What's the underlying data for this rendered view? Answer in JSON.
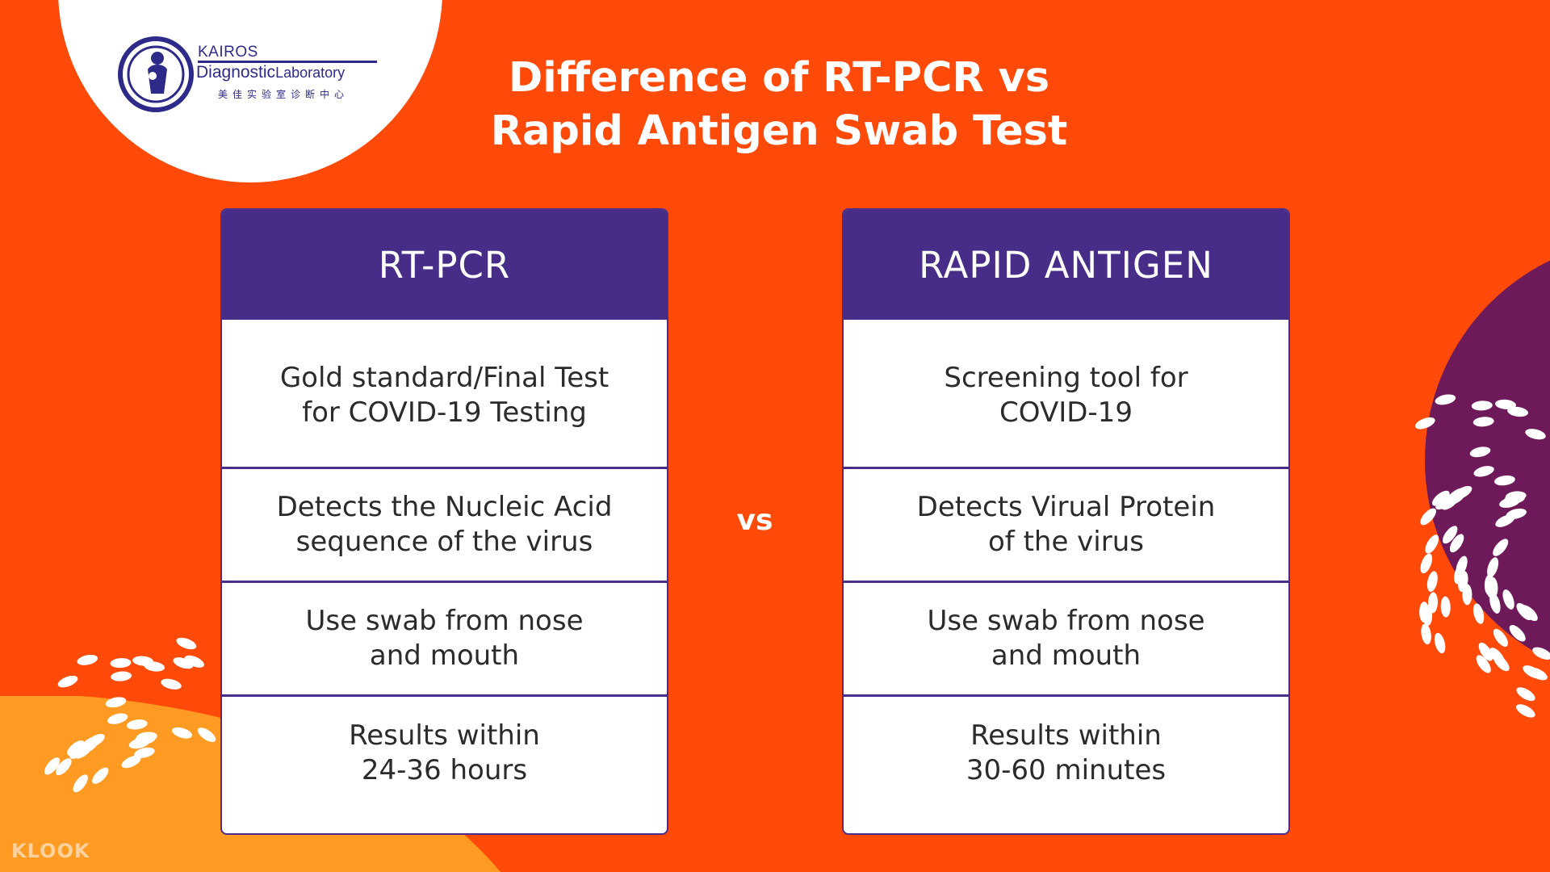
{
  "colors": {
    "background": "#ff4a0a",
    "header": "#472d88",
    "border": "#4a2d8c",
    "accent_yellow": "#ff9a22",
    "accent_purple": "#6e1a5a",
    "logo_blue": "#2d2a8a"
  },
  "logo": {
    "brand": "KAIROS",
    "name_main": "Diagnostic",
    "name_sub": "Laboratory",
    "chinese": "美佳实验室诊断中心",
    "emblem_icon": "mother-child-emblem-icon"
  },
  "title": {
    "line1": "Difference of RT-PCR vs",
    "line2": "Rapid Antigen Swab Test"
  },
  "vs_label": "vs",
  "left": {
    "header": "RT-PCR",
    "rows": [
      {
        "line1": "Gold standard/Final Test",
        "line2": "for COVID-19 Testing"
      },
      {
        "line1": "Detects the Nucleic Acid",
        "line2": "sequence of the virus"
      },
      {
        "line1": "Use swab from nose",
        "line2": "and mouth"
      },
      {
        "line1": "Results within",
        "line2": "24-36 hours"
      }
    ]
  },
  "right": {
    "header": "RAPID ANTIGEN",
    "rows": [
      {
        "line1": "Screening tool for",
        "line2": "COVID-19"
      },
      {
        "line1": "Detects Virual Protein",
        "line2": "of the virus"
      },
      {
        "line1": "Use swab from nose",
        "line2": "and mouth"
      },
      {
        "line1": "Results within",
        "line2": "30-60 minutes"
      }
    ]
  },
  "watermark": "KLOOK"
}
